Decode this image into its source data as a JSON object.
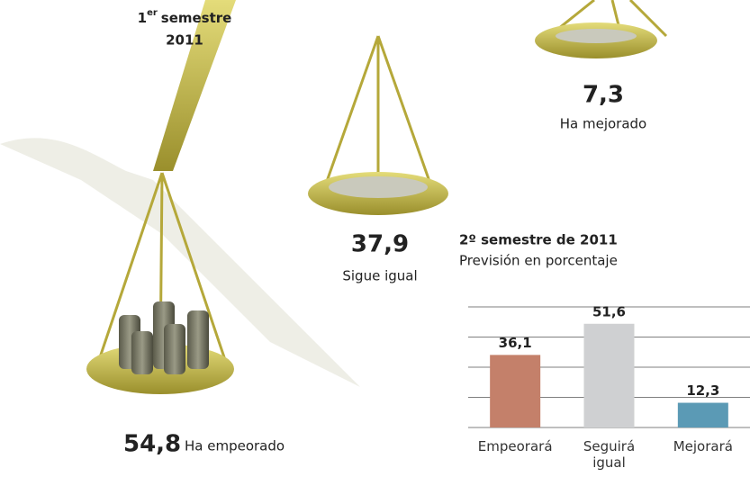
{
  "period": {
    "number": "1",
    "suffix": "er",
    "label": "semestre",
    "year": "2011"
  },
  "scale_items": [
    {
      "value": "54,8",
      "label": "Ha empeorado"
    },
    {
      "value": "37,9",
      "label": "Sigue igual"
    },
    {
      "value": "7,3",
      "label": "Ha mejorado"
    }
  ],
  "chart_data": {
    "type": "bar",
    "title": "2º semestre de 2011",
    "subtitle": "Previsión en porcentaje",
    "categories": [
      "Empeorará",
      "Seguirá igual",
      "Mejorará"
    ],
    "values": [
      36.1,
      51.6,
      12.3
    ],
    "value_labels": [
      "36,1",
      "51,6",
      "12,3"
    ],
    "colors": [
      "#c4806a",
      "#cfd0d2",
      "#5b9ab5"
    ],
    "ylim": [
      0,
      60
    ],
    "yticks": [
      0,
      15,
      30,
      45,
      60
    ],
    "grid": true
  }
}
